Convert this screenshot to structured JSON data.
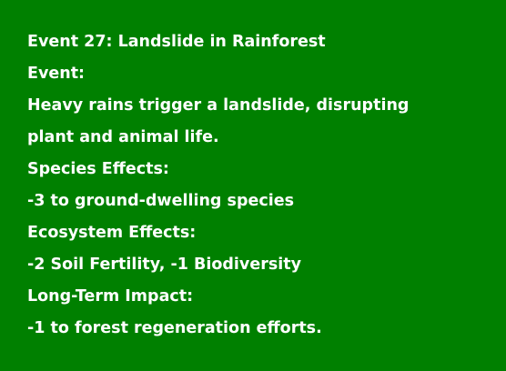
{
  "card": {
    "background_color": "#008000",
    "text_color": "#ffffff",
    "title": "Event 27: Landslide in Rainforest",
    "event_heading": "Event:",
    "event_text_line1": "Heavy rains trigger a landslide, disrupting",
    "event_text_line2": "plant and animal life.",
    "species_heading": "Species Effects:",
    "species_text": "-3 to ground-dwelling species",
    "ecosystem_heading": "Ecosystem Effects:",
    "ecosystem_text": "-2 Soil Fertility, -1 Biodiversity",
    "longterm_heading": "Long-Term Impact:",
    "longterm_text": "-1 to forest regeneration efforts."
  }
}
